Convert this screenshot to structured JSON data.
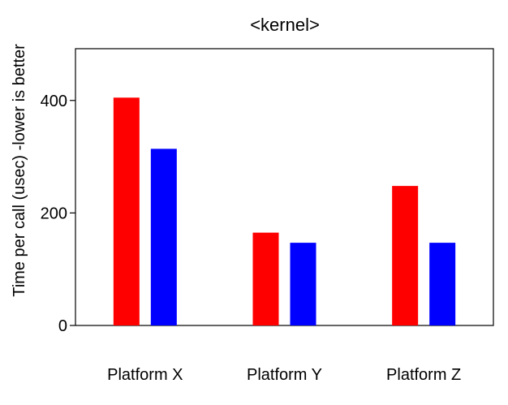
{
  "chart_data": {
    "type": "bar",
    "title": "<kernel>",
    "xlabel": "",
    "ylabel": "Time per call (usec) -lower is better",
    "categories": [
      "Platform X",
      "Platform Y",
      "Platform Z"
    ],
    "series": [
      {
        "color": "#ff0000",
        "values": [
          405,
          165,
          248
        ]
      },
      {
        "color": "#0000ff",
        "values": [
          314,
          147,
          147
        ]
      }
    ],
    "yticks": [
      0,
      200,
      400
    ],
    "ylim": [
      0,
      492
    ],
    "grid": false,
    "legend": "none"
  }
}
